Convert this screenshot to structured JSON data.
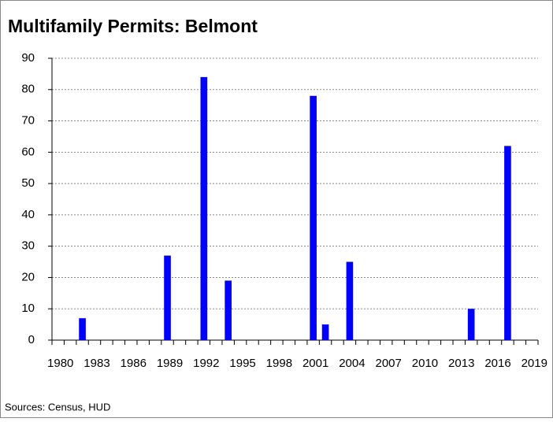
{
  "chart_data": {
    "type": "bar",
    "title": "Multifamily  Permits: Belmont",
    "categories": [
      "1980",
      null,
      null,
      "1983",
      null,
      null,
      "1986",
      null,
      null,
      "1989",
      null,
      null,
      "1992",
      null,
      null,
      "1995",
      null,
      null,
      "1998",
      null,
      null,
      "2001",
      null,
      null,
      "2004",
      null,
      null,
      "2007",
      null,
      null,
      "2010",
      null,
      null,
      "2013",
      null,
      null,
      "2016",
      null,
      null,
      "2019"
    ],
    "values": [
      0,
      0,
      7,
      0,
      0,
      0,
      0,
      0,
      0,
      27,
      0,
      0,
      84,
      0,
      19,
      0,
      0,
      0,
      0,
      0,
      0,
      78,
      5,
      0,
      25,
      0,
      0,
      0,
      0,
      0,
      0,
      0,
      0,
      0,
      10,
      0,
      0,
      62,
      0,
      0
    ],
    "color": "#0000ff",
    "ylim": [
      0,
      90
    ],
    "yticks": [
      0,
      10,
      20,
      30,
      40,
      50,
      60,
      70,
      80,
      90
    ],
    "grid": true,
    "source": "Sources: Census, HUD"
  }
}
